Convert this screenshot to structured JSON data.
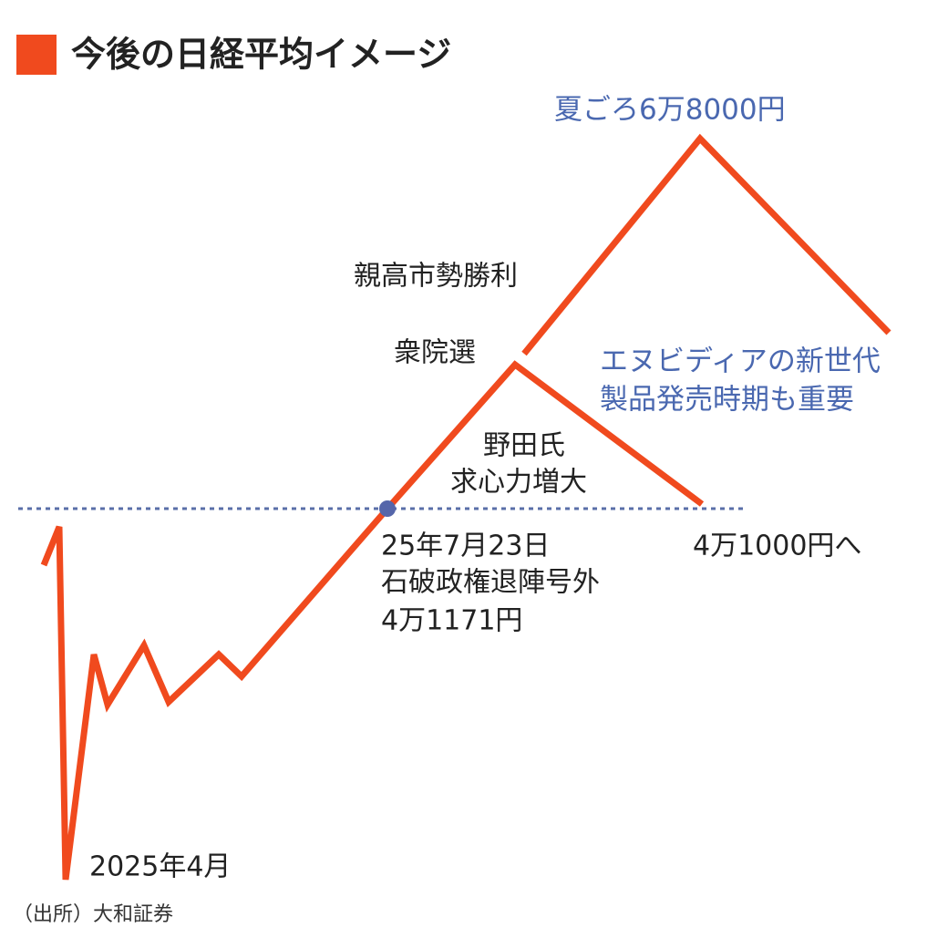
{
  "header": {
    "title": "今後の日経平均イメージ"
  },
  "labels": {
    "summer_peak": "夏ごろ6万8000円",
    "takaichi": "親高市勢勝利",
    "election": "衆院選",
    "nvidia_1": "エヌビディアの新世代",
    "nvidia_2": "製品発売時期も重要",
    "noda_1": "野田氏",
    "noda_2": "求心力増大",
    "point_date": "25年7月23日",
    "point_event": "石破政権退陣号外",
    "point_value": "4万1171円",
    "low_target": "4万1000円へ",
    "start": "2025年4月"
  },
  "footer": {
    "source": "（出所）大和証券"
  }
}
